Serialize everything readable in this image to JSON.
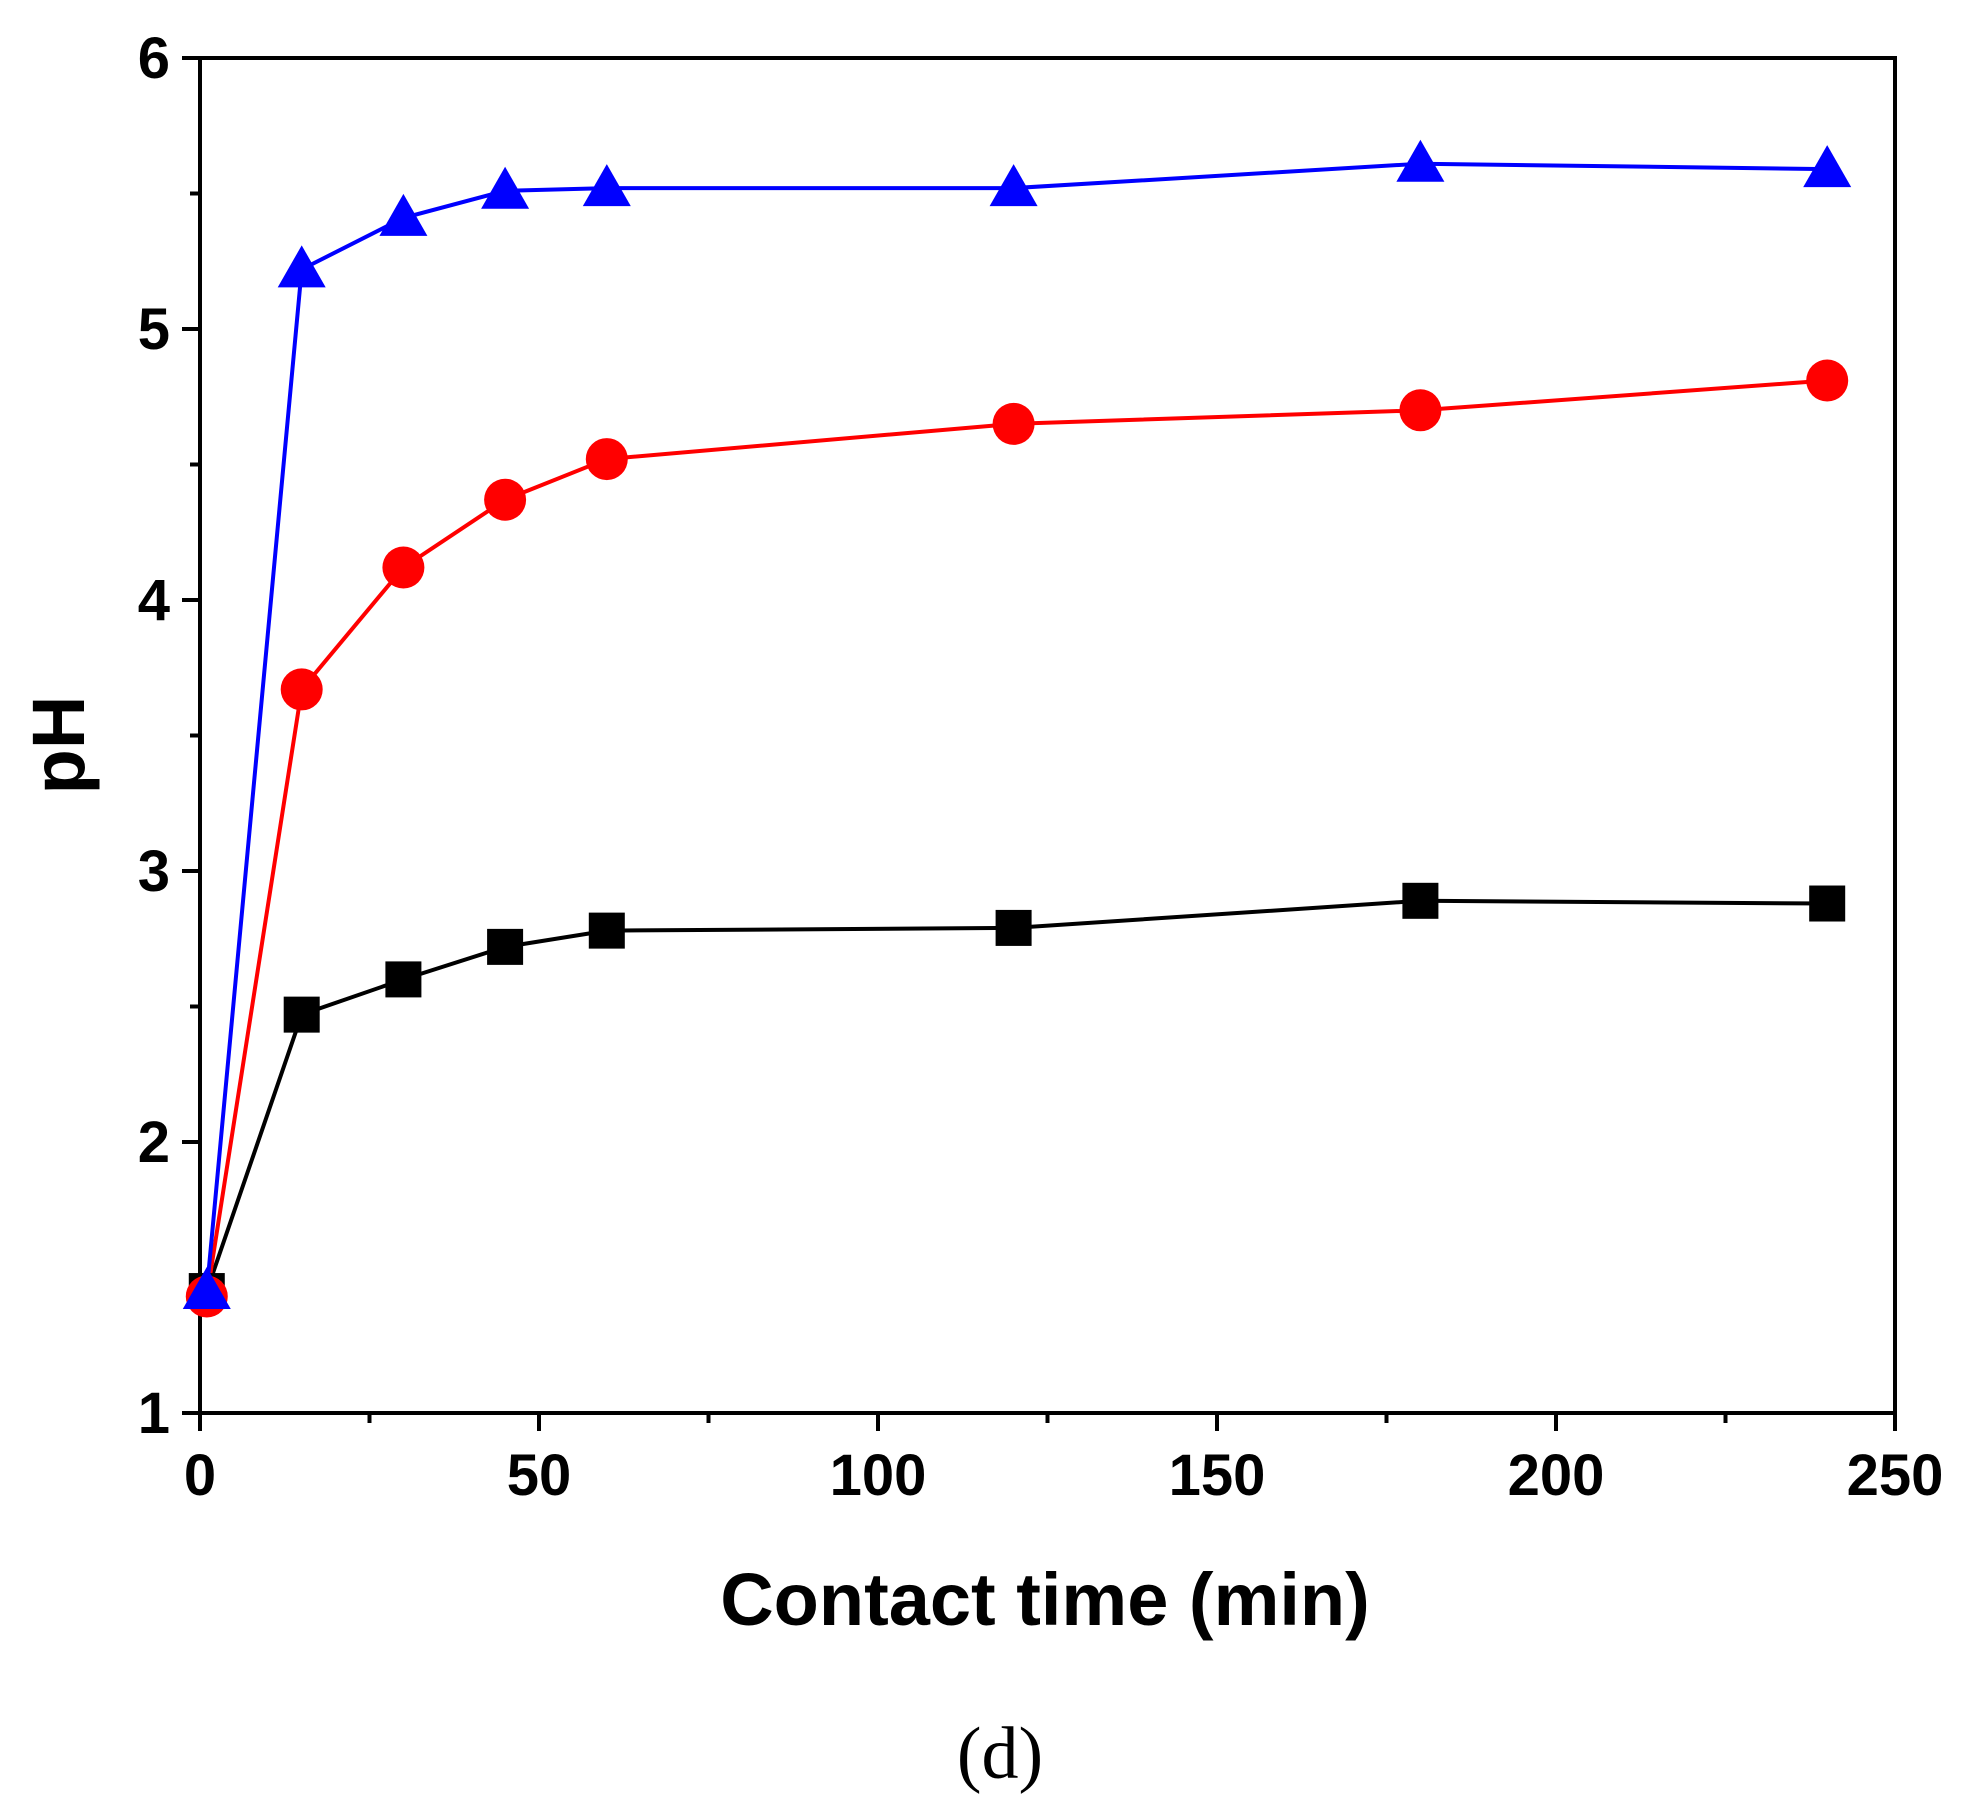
{
  "chart_data": {
    "type": "line",
    "title": "",
    "xlabel": "Contact time (min)",
    "ylabel": "pH",
    "panel_label": "(d)",
    "xlim": [
      0,
      250
    ],
    "ylim": [
      1,
      6
    ],
    "x_ticks": [
      0,
      50,
      100,
      150,
      200,
      250
    ],
    "x_tick_labels": [
      "0",
      "50",
      "100",
      "150",
      "200",
      "250"
    ],
    "x_minor_ticks": [
      25,
      75,
      125,
      175,
      225
    ],
    "y_ticks": [
      1,
      2,
      3,
      4,
      5,
      6
    ],
    "y_tick_labels": [
      "1",
      "2",
      "3",
      "4",
      "5",
      "6"
    ],
    "y_minor_ticks": [
      1.5,
      2.5,
      3.5,
      4.5,
      5.5
    ],
    "grid": false,
    "legend": "none",
    "series": [
      {
        "name": "square",
        "marker": "square",
        "color": "#000000",
        "x": [
          1,
          15,
          30,
          45,
          60,
          120,
          180,
          240
        ],
        "values": [
          1.45,
          2.47,
          2.6,
          2.72,
          2.78,
          2.79,
          2.89,
          2.88
        ]
      },
      {
        "name": "circle",
        "marker": "circle",
        "color": "#ff0000",
        "x": [
          1,
          15,
          30,
          45,
          60,
          120,
          180,
          240
        ],
        "values": [
          1.43,
          3.67,
          4.12,
          4.37,
          4.52,
          4.65,
          4.7,
          4.81
        ]
      },
      {
        "name": "triangle",
        "marker": "triangle",
        "color": "#0000ff",
        "x": [
          1,
          15,
          30,
          45,
          60,
          120,
          180,
          240
        ],
        "values": [
          1.45,
          5.22,
          5.41,
          5.51,
          5.52,
          5.52,
          5.61,
          5.59
        ]
      }
    ]
  }
}
